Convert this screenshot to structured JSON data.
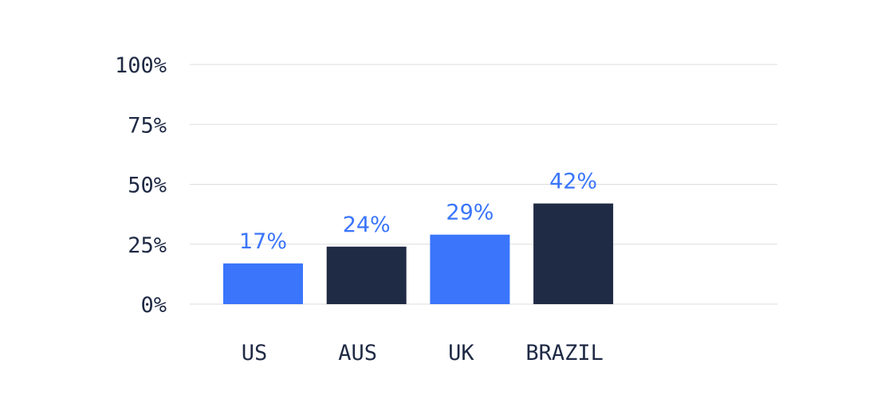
{
  "chart_data": {
    "type": "bar",
    "title": "",
    "xlabel": "",
    "ylabel": "",
    "categories": [
      "US",
      "AUS",
      "UK",
      "BRAZIL"
    ],
    "values": [
      17,
      24,
      29,
      42
    ],
    "value_labels": [
      "17%",
      "24%",
      "29%",
      "42%"
    ],
    "bar_colors": [
      "#3a75fb",
      "#1f2a44",
      "#3a75fb",
      "#1f2a44"
    ],
    "label_color": "#3a75fb",
    "ylim": [
      0,
      100
    ],
    "y_ticks": [
      0,
      25,
      50,
      75,
      100
    ],
    "y_tick_labels": [
      "0%",
      "25%",
      "50%",
      "75%",
      "100%"
    ],
    "grid": true,
    "legend": false
  }
}
